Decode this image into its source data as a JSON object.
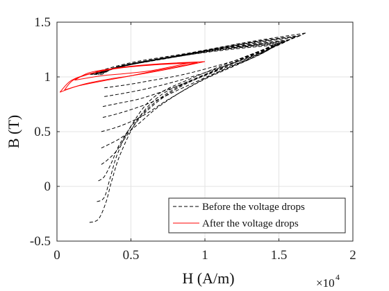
{
  "chart_data": {
    "type": "line",
    "xlabel": "H (A/m)",
    "ylabel": "B (T)",
    "x_exponent_base": "×10",
    "x_exponent_power": "4",
    "xlim": [
      0,
      2
    ],
    "ylim": [
      -0.5,
      1.5
    ],
    "x_ticks": [
      0,
      0.5,
      1,
      1.5,
      2
    ],
    "x_tick_labels": [
      "0",
      "0.5",
      "1",
      "1.5",
      "2"
    ],
    "y_ticks": [
      -0.5,
      0,
      0.5,
      1,
      1.5
    ],
    "y_tick_labels": [
      "-0.5",
      "0",
      "0.5",
      "1",
      "1.5"
    ],
    "grid": true,
    "legend_position": "bottom-right",
    "colors": {
      "before": "#000000",
      "after": "#ff0000"
    },
    "series": [
      {
        "name": "Before the voltage drops",
        "style": "dashed",
        "color": "#000000",
        "loops": [
          {
            "rise": [
              [
                0.22,
                -0.33
              ],
              [
                0.28,
                -0.3
              ],
              [
                0.33,
                -0.15
              ],
              [
                0.37,
                0.05
              ],
              [
                0.43,
                0.3
              ],
              [
                0.55,
                0.62
              ],
              [
                0.72,
                0.85
              ],
              [
                1.0,
                1.02
              ],
              [
                1.35,
                1.22
              ],
              [
                1.68,
                1.4
              ]
            ],
            "fall": [
              [
                1.68,
                1.4
              ],
              [
                1.3,
                1.32
              ],
              [
                0.9,
                1.22
              ],
              [
                0.5,
                1.13
              ],
              [
                0.2,
                1.02
              ]
            ]
          },
          {
            "rise": [
              [
                0.27,
                -0.14
              ],
              [
                0.32,
                -0.1
              ],
              [
                0.36,
                0.08
              ],
              [
                0.41,
                0.3
              ],
              [
                0.5,
                0.55
              ],
              [
                0.66,
                0.82
              ],
              [
                0.95,
                1.01
              ],
              [
                1.3,
                1.2
              ],
              [
                1.65,
                1.38
              ]
            ],
            "fall": [
              [
                1.65,
                1.38
              ],
              [
                1.28,
                1.31
              ],
              [
                0.88,
                1.21
              ],
              [
                0.5,
                1.12
              ],
              [
                0.22,
                1.02
              ]
            ]
          },
          {
            "rise": [
              [
                0.28,
                0.05
              ],
              [
                0.32,
                0.09
              ],
              [
                0.37,
                0.22
              ],
              [
                0.43,
                0.4
              ],
              [
                0.56,
                0.64
              ],
              [
                0.78,
                0.88
              ],
              [
                1.1,
                1.08
              ],
              [
                1.45,
                1.27
              ],
              [
                1.62,
                1.37
              ]
            ],
            "fall": [
              [
                1.62,
                1.37
              ],
              [
                1.25,
                1.3
              ],
              [
                0.86,
                1.2
              ],
              [
                0.48,
                1.11
              ],
              [
                0.23,
                1.02
              ]
            ]
          },
          {
            "rise": [
              [
                0.3,
                0.2
              ],
              [
                0.34,
                0.24
              ],
              [
                0.4,
                0.32
              ],
              [
                0.47,
                0.46
              ],
              [
                0.6,
                0.68
              ],
              [
                0.82,
                0.9
              ],
              [
                1.15,
                1.1
              ],
              [
                1.48,
                1.28
              ],
              [
                1.6,
                1.36
              ]
            ],
            "fall": [
              [
                1.6,
                1.36
              ],
              [
                1.22,
                1.29
              ],
              [
                0.84,
                1.2
              ],
              [
                0.47,
                1.11
              ],
              [
                0.24,
                1.02
              ]
            ]
          },
          {
            "rise": [
              [
                0.3,
                0.35
              ],
              [
                0.36,
                0.39
              ],
              [
                0.44,
                0.45
              ],
              [
                0.55,
                0.57
              ],
              [
                0.7,
                0.74
              ],
              [
                0.95,
                0.95
              ],
              [
                1.25,
                1.14
              ],
              [
                1.57,
                1.34
              ]
            ],
            "fall": [
              [
                1.57,
                1.34
              ],
              [
                1.2,
                1.28
              ],
              [
                0.82,
                1.19
              ],
              [
                0.46,
                1.1
              ],
              [
                0.25,
                1.02
              ]
            ]
          },
          {
            "rise": [
              [
                0.3,
                0.5
              ],
              [
                0.38,
                0.53
              ],
              [
                0.48,
                0.58
              ],
              [
                0.6,
                0.66
              ],
              [
                0.76,
                0.8
              ],
              [
                1.0,
                0.98
              ],
              [
                1.3,
                1.16
              ],
              [
                1.54,
                1.33
              ]
            ],
            "fall": [
              [
                1.54,
                1.33
              ],
              [
                1.18,
                1.27
              ],
              [
                0.8,
                1.19
              ],
              [
                0.45,
                1.1
              ],
              [
                0.26,
                1.02
              ]
            ]
          },
          {
            "rise": [
              [
                0.31,
                0.63
              ],
              [
                0.4,
                0.66
              ],
              [
                0.52,
                0.71
              ],
              [
                0.66,
                0.78
              ],
              [
                0.85,
                0.9
              ],
              [
                1.08,
                1.04
              ],
              [
                1.35,
                1.19
              ],
              [
                1.52,
                1.32
              ]
            ],
            "fall": [
              [
                1.52,
                1.32
              ],
              [
                1.16,
                1.26
              ],
              [
                0.78,
                1.18
              ],
              [
                0.44,
                1.1
              ],
              [
                0.27,
                1.02
              ]
            ]
          },
          {
            "rise": [
              [
                0.31,
                0.73
              ],
              [
                0.42,
                0.76
              ],
              [
                0.56,
                0.8
              ],
              [
                0.72,
                0.87
              ],
              [
                0.92,
                0.97
              ],
              [
                1.15,
                1.09
              ],
              [
                1.38,
                1.21
              ],
              [
                1.5,
                1.31
              ]
            ],
            "fall": [
              [
                1.5,
                1.31
              ],
              [
                1.14,
                1.26
              ],
              [
                0.76,
                1.18
              ],
              [
                0.43,
                1.1
              ],
              [
                0.28,
                1.02
              ]
            ]
          },
          {
            "rise": [
              [
                0.32,
                0.82
              ],
              [
                0.45,
                0.85
              ],
              [
                0.6,
                0.89
              ],
              [
                0.78,
                0.95
              ],
              [
                0.98,
                1.03
              ],
              [
                1.2,
                1.13
              ],
              [
                1.4,
                1.23
              ],
              [
                1.48,
                1.3
              ]
            ],
            "fall": [
              [
                1.48,
                1.3
              ],
              [
                1.12,
                1.25
              ],
              [
                0.75,
                1.17
              ],
              [
                0.42,
                1.09
              ],
              [
                0.29,
                1.02
              ]
            ]
          },
          {
            "rise": [
              [
                0.32,
                0.9
              ],
              [
                0.48,
                0.93
              ],
              [
                0.65,
                0.97
              ],
              [
                0.85,
                1.02
              ],
              [
                1.05,
                1.09
              ],
              [
                1.25,
                1.17
              ],
              [
                1.46,
                1.29
              ]
            ],
            "fall": [
              [
                1.46,
                1.29
              ],
              [
                1.1,
                1.24
              ],
              [
                0.74,
                1.17
              ],
              [
                0.42,
                1.09
              ],
              [
                0.3,
                1.02
              ]
            ]
          }
        ]
      },
      {
        "name": "After the voltage drops",
        "style": "solid",
        "color": "#ff0000",
        "loops": [
          {
            "rise": [
              [
                0.02,
                0.86
              ],
              [
                0.1,
                0.9
              ],
              [
                0.2,
                0.94
              ],
              [
                0.35,
                0.98
              ],
              [
                0.5,
                1.01
              ],
              [
                0.75,
                1.07
              ],
              [
                1.0,
                1.14
              ]
            ],
            "fall": [
              [
                1.0,
                1.14
              ],
              [
                0.7,
                1.12
              ],
              [
                0.45,
                1.09
              ],
              [
                0.25,
                1.04
              ],
              [
                0.1,
                0.97
              ],
              [
                0.02,
                0.86
              ]
            ]
          },
          {
            "rise": [
              [
                0.05,
                0.88
              ],
              [
                0.15,
                0.92
              ],
              [
                0.3,
                0.96
              ],
              [
                0.46,
                1.0
              ],
              [
                0.68,
                1.06
              ],
              [
                0.95,
                1.13
              ]
            ],
            "fall": [
              [
                0.95,
                1.13
              ],
              [
                0.66,
                1.11
              ],
              [
                0.42,
                1.08
              ],
              [
                0.23,
                1.03
              ],
              [
                0.11,
                0.97
              ],
              [
                0.05,
                0.88
              ]
            ]
          },
          {
            "rise": [
              [
                0.12,
                0.97
              ],
              [
                0.3,
                1.01
              ],
              [
                0.46,
                1.03
              ],
              [
                0.65,
                1.06
              ],
              [
                0.9,
                1.13
              ]
            ],
            "fall": [
              [
                0.9,
                1.13
              ],
              [
                0.63,
                1.11
              ],
              [
                0.4,
                1.08
              ],
              [
                0.22,
                1.04
              ],
              [
                0.12,
                0.97
              ]
            ]
          }
        ]
      }
    ]
  }
}
